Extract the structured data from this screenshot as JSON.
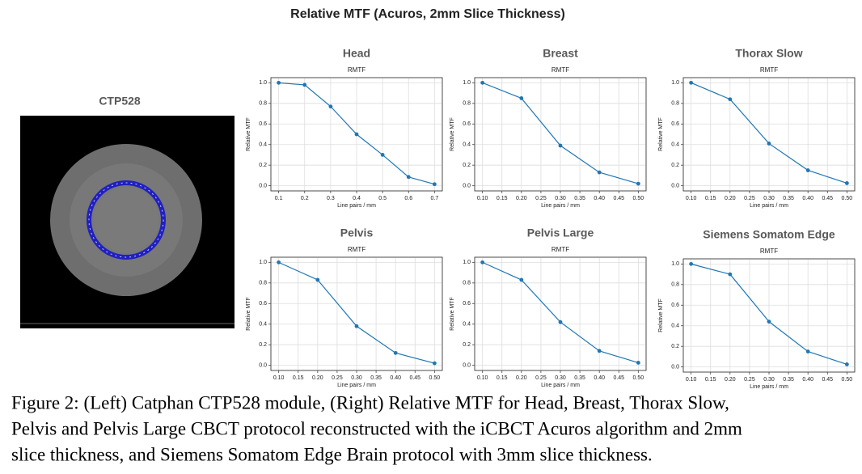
{
  "figure_title": "Relative MTF (Acuros, 2mm Slice Thickness)",
  "image_label": "CTP528",
  "caption_lines": [
    "Figure 2: (Left) Catphan CTP528 module, (Right) Relative MTF for Head, Breast, Thorax Slow,",
    "Pelvis and Pelvis Large CBCT protocol reconstructed with the iCBCT Acuros algorithm and 2mm",
    "slice thickness, and Siemens Somatom Edge Brain protocol with 3mm slice thickness."
  ],
  "chart_data": [
    {
      "type": "line",
      "title": "Head",
      "subtitle": "RMTF",
      "x_label": "Line pairs / mm",
      "y_label": "Relative MTF",
      "grid": true,
      "color": "#1f77b4",
      "x": [
        0.1,
        0.2,
        0.3,
        0.4,
        0.5,
        0.6,
        0.7
      ],
      "values": [
        1.0,
        0.98,
        0.77,
        0.5,
        0.3,
        0.085,
        0.015
      ],
      "xlim": [
        0.07,
        0.73
      ],
      "ylim": [
        -0.05,
        1.05
      ],
      "xticks": [
        0.1,
        0.2,
        0.3,
        0.4,
        0.5,
        0.6,
        0.7
      ],
      "yticks": [
        {
          "value": 0,
          "label": "0.0"
        },
        0.2,
        0.4,
        0.6,
        0.8,
        {
          "value": 1,
          "label": "1.0"
        }
      ]
    },
    {
      "type": "line",
      "title": "Breast",
      "subtitle": "RMTF",
      "x_label": "Line pairs / mm",
      "y_label": "Relative MTF",
      "grid": true,
      "color": "#1f77b4",
      "x": [
        0.1,
        0.2,
        0.3,
        0.4,
        0.5
      ],
      "values": [
        1.0,
        0.85,
        0.39,
        0.13,
        0.02
      ],
      "xlim": [
        0.08,
        0.52
      ],
      "ylim": [
        -0.05,
        1.05
      ],
      "xticks": [
        {
          "value": 0.1,
          "label": "0.10"
        },
        0.15,
        {
          "value": 0.2,
          "label": "0.20"
        },
        0.25,
        {
          "value": 0.3,
          "label": "0.30"
        },
        0.35,
        {
          "value": 0.4,
          "label": "0.40"
        },
        0.45,
        {
          "value": 0.5,
          "label": "0.50"
        }
      ],
      "yticks": [
        {
          "value": 0,
          "label": "0.0"
        },
        0.2,
        0.4,
        0.6,
        0.8,
        {
          "value": 1,
          "label": "1.0"
        }
      ]
    },
    {
      "type": "line",
      "title": "Thorax Slow",
      "subtitle": "RMTF",
      "x_label": "Line pairs / mm",
      "y_label": "Relative MTF",
      "grid": true,
      "color": "#1f77b4",
      "x": [
        0.1,
        0.2,
        0.3,
        0.4,
        0.5
      ],
      "values": [
        1.0,
        0.84,
        0.41,
        0.15,
        0.025
      ],
      "xlim": [
        0.08,
        0.52
      ],
      "ylim": [
        -0.05,
        1.05
      ],
      "xticks": [
        {
          "value": 0.1,
          "label": "0.10"
        },
        0.15,
        {
          "value": 0.2,
          "label": "0.20"
        },
        0.25,
        {
          "value": 0.3,
          "label": "0.30"
        },
        0.35,
        {
          "value": 0.4,
          "label": "0.40"
        },
        0.45,
        {
          "value": 0.5,
          "label": "0.50"
        }
      ],
      "yticks": [
        {
          "value": 0,
          "label": "0.0"
        },
        0.2,
        0.4,
        0.6,
        0.8,
        {
          "value": 1,
          "label": "1.0"
        }
      ]
    },
    {
      "type": "line",
      "title": "Pelvis",
      "subtitle": "RMTF",
      "x_label": "Line pairs / mm",
      "y_label": "Relative MTF",
      "grid": true,
      "color": "#1f77b4",
      "x": [
        0.1,
        0.2,
        0.3,
        0.4,
        0.5
      ],
      "values": [
        1.0,
        0.83,
        0.38,
        0.12,
        0.02
      ],
      "xlim": [
        0.08,
        0.52
      ],
      "ylim": [
        -0.05,
        1.05
      ],
      "xticks": [
        {
          "value": 0.1,
          "label": "0.10"
        },
        0.15,
        {
          "value": 0.2,
          "label": "0.20"
        },
        0.25,
        {
          "value": 0.3,
          "label": "0.30"
        },
        0.35,
        {
          "value": 0.4,
          "label": "0.40"
        },
        0.45,
        {
          "value": 0.5,
          "label": "0.50"
        }
      ],
      "yticks": [
        {
          "value": 0,
          "label": "0.0"
        },
        0.2,
        0.4,
        0.6,
        0.8,
        {
          "value": 1,
          "label": "1.0"
        }
      ]
    },
    {
      "type": "line",
      "title": "Pelvis Large",
      "subtitle": "RMTF",
      "x_label": "Line pairs / mm",
      "y_label": "Relative MTF",
      "grid": true,
      "color": "#1f77b4",
      "x": [
        0.1,
        0.2,
        0.3,
        0.4,
        0.5
      ],
      "values": [
        1.0,
        0.83,
        0.42,
        0.14,
        0.025
      ],
      "xlim": [
        0.08,
        0.52
      ],
      "ylim": [
        -0.05,
        1.05
      ],
      "xticks": [
        {
          "value": 0.1,
          "label": "0.10"
        },
        0.15,
        {
          "value": 0.2,
          "label": "0.20"
        },
        0.25,
        {
          "value": 0.3,
          "label": "0.30"
        },
        0.35,
        {
          "value": 0.4,
          "label": "0.40"
        },
        0.45,
        {
          "value": 0.5,
          "label": "0.50"
        }
      ],
      "yticks": [
        {
          "value": 0,
          "label": "0.0"
        },
        0.2,
        0.4,
        0.6,
        0.8,
        {
          "value": 1,
          "label": "1.0"
        }
      ]
    },
    {
      "type": "line",
      "title": "Siemens Somatom Edge",
      "subtitle": "RMTF",
      "x_label": "Line pairs / mm",
      "y_label": "Relative MTF",
      "grid": true,
      "color": "#1f77b4",
      "x": [
        0.1,
        0.2,
        0.3,
        0.4,
        0.5
      ],
      "values": [
        1.0,
        0.9,
        0.44,
        0.15,
        0.025
      ],
      "xlim": [
        0.08,
        0.52
      ],
      "ylim": [
        -0.05,
        1.05
      ],
      "xticks": [
        {
          "value": 0.1,
          "label": "0.10"
        },
        0.15,
        {
          "value": 0.2,
          "label": "0.20"
        },
        0.25,
        {
          "value": 0.3,
          "label": "0.30"
        },
        0.35,
        {
          "value": 0.4,
          "label": "0.40"
        },
        0.45,
        {
          "value": 0.5,
          "label": "0.50"
        }
      ],
      "yticks": [
        {
          "value": 0,
          "label": "0.0"
        },
        0.2,
        0.4,
        0.6,
        0.8,
        {
          "value": 1,
          "label": "1.0"
        }
      ]
    }
  ]
}
